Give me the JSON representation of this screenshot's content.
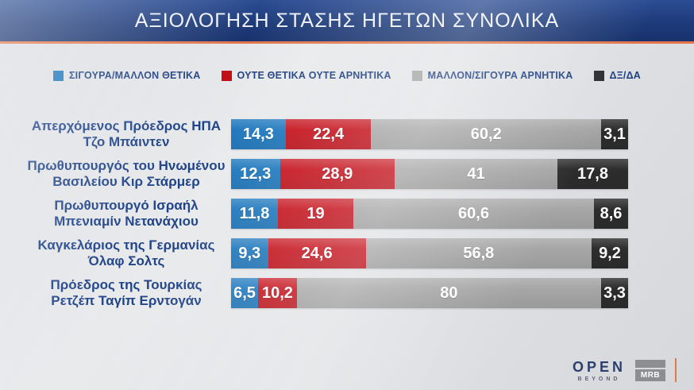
{
  "title": "ΑΞΙΟΛΟΓΗΣΗ ΣΤΑΣΗΣ ΗΓΕΤΩΝ ΣΥΝΟΛΙΚΑ",
  "colors": {
    "banner": "#1d3a78",
    "accent_line": "#e0764a",
    "legend_text": "#1e3f7f",
    "row_label_text": "#1d4186",
    "positive_blue": "#1b76bd",
    "neutral_red": "#c40d17",
    "negative_gray": "#a6a6a6",
    "dkda_dark": "#2d2d2d",
    "value_text": "#ffffff"
  },
  "legend": [
    {
      "label": "ΣΙΓΟΥΡΑ/ΜΑΛΛΟΝ ΘΕΤΙΚΑ",
      "color": "#1b76bd",
      "icon": "blue-square-swatch"
    },
    {
      "label": "ΟΥΤΕ ΘΕΤΙΚΑ ΟΥΤΕ ΑΡΝΗΤΙΚΑ",
      "color": "#c40d17",
      "icon": "red-square-swatch"
    },
    {
      "label": "ΜΑΛΛΟΝ/ΣΙΓΟΥΡΑ ΑΡΝΗΤΙΚΑ",
      "color": "#a6a6a6",
      "icon": "gray-square-swatch"
    },
    {
      "label": "ΔΞ/ΔΑ",
      "color": "#2d2d2d",
      "icon": "dark-square-swatch"
    }
  ],
  "chart_data": {
    "type": "bar",
    "stacked": true,
    "orientation": "horizontal",
    "unit": "%",
    "title": "ΑΞΙΟΛΟΓΗΣΗ ΣΤΑΣΗΣ ΗΓΕΤΩΝ ΣΥΝΟΛΙΚΑ",
    "xlim": [
      0,
      100
    ],
    "grid": false,
    "legend_position": "top-center",
    "categories": [
      "Απερχόμενος Πρόεδρος ΗΠΑ Τζο Μπάιντεν",
      "Πρωθυπουργός του Ηνωμένου Βασιλείου Κιρ Στάρμερ",
      "Πρωθυπουργό Ισραήλ Μπενιαμίν Νετανάχιου",
      "Καγκελάριος της Γερμανίας Όλαφ Σολτς",
      "Πρόεδρος της Τουρκίας Ρετζέπ Ταγίπ Ερντογάν"
    ],
    "categories_lines": [
      [
        "Απερχόμενος Πρόεδρος ΗΠΑ",
        "Τζο Μπάιντεν"
      ],
      [
        "Πρωθυπουργός του Ηνωμένου",
        "Βασιλείου Κιρ Στάρμερ"
      ],
      [
        "Πρωθυπουργό Ισραήλ",
        "Μπενιαμίν Νετανάχιου"
      ],
      [
        "Καγκελάριος της Γερμανίας",
        "Όλαφ Σολτς"
      ],
      [
        "Πρόεδρος της Τουρκίας",
        "Ρετζέπ Ταγίπ Ερντογάν"
      ]
    ],
    "series": [
      {
        "name": "ΣΙΓΟΥΡΑ/ΜΑΛΛΟΝ ΘΕΤΙΚΑ",
        "color": "#1b76bd",
        "values": [
          14.3,
          12.3,
          11.8,
          9.3,
          6.5
        ],
        "values_display": [
          "14,3",
          "12,3",
          "11,8",
          "9,3",
          "6,5"
        ]
      },
      {
        "name": "ΟΥΤΕ ΘΕΤΙΚΑ ΟΥΤΕ ΑΡΝΗΤΙΚΑ",
        "color": "#c40d17",
        "values": [
          22.4,
          28.9,
          19,
          24.6,
          10.2
        ],
        "values_display": [
          "22,4",
          "28,9",
          "19",
          "24,6",
          "10,2"
        ]
      },
      {
        "name": "ΜΑΛΛΟΝ/ΣΙΓΟΥΡΑ ΑΡΝΗΤΙΚΑ",
        "color": "#a6a6a6",
        "values": [
          60.2,
          41,
          60.6,
          56.8,
          80
        ],
        "values_display": [
          "60,2",
          "41",
          "60,6",
          "56,8",
          "80"
        ]
      },
      {
        "name": "ΔΞ/ΔΑ",
        "color": "#2d2d2d",
        "values": [
          3.1,
          17.8,
          8.6,
          9.2,
          3.3
        ],
        "values_display": [
          "3,1",
          "17,8",
          "8,6",
          "9,2",
          "3,3"
        ]
      }
    ]
  },
  "footer": {
    "open_logo": "OPEN",
    "open_sub": "BEYOND",
    "mrb_logo": "MRB"
  }
}
